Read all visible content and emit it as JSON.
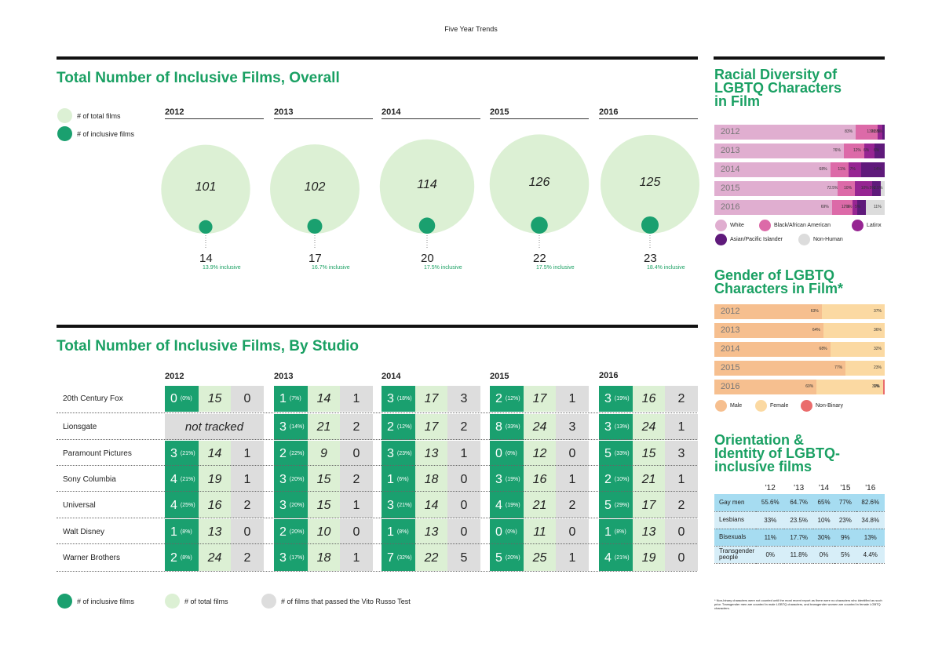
{
  "page_title": "Five Year Trends",
  "overall": {
    "title": "Total Number of Inclusive Films, Overall",
    "legend": {
      "total": "# of total films",
      "inclusive": "# of inclusive films"
    },
    "colors": {
      "total": "#dcf0d4",
      "inclusive": "#1aa06f"
    }
  },
  "studio_section": {
    "title": "Total Number of Inclusive Films, By Studio",
    "not_tracked": "not tracked",
    "studios": [
      "20th Century Fox",
      "Lionsgate",
      "Paramount Pictures",
      "Sony Columbia",
      "Universal",
      "Walt Disney",
      "Warner Brothers"
    ],
    "legend": {
      "inclusive": "# of inclusive films",
      "total": "# of total films",
      "vito": "# of films that passed the Vito Russo Test"
    }
  },
  "racial": {
    "title_lines": [
      "Racial Diversity of",
      "LGBTQ Characters",
      "in Film"
    ],
    "legend": [
      "White",
      "Black/African American",
      "Latinx",
      "Asian/Pacific Islander",
      "Non-Human"
    ]
  },
  "gender": {
    "title_lines": [
      "Gender of LGBTQ",
      "Characters in Film*"
    ],
    "legend": [
      "Male",
      "Female",
      "Non-Binary"
    ]
  },
  "orientation": {
    "title_lines": [
      "Orientation &",
      "Identity of LGBTQ-",
      "inclusive films"
    ],
    "headers": [
      "'12",
      "'13",
      "'14",
      "'15",
      "'16"
    ],
    "rows": [
      {
        "label": "Gay men",
        "values": [
          "55.6%",
          "64.7%",
          "65%",
          "77%",
          "82.6%"
        ]
      },
      {
        "label": "Lesbians",
        "values": [
          "33%",
          "23.5%",
          "10%",
          "23%",
          "34.8%"
        ]
      },
      {
        "label": "Bisexuals",
        "values": [
          "11%",
          "17.7%",
          "30%",
          "9%",
          "13%"
        ]
      },
      {
        "label": "Transgender people",
        "values": [
          "0%",
          "11.8%",
          "0%",
          "5%",
          "4.4%"
        ]
      }
    ]
  },
  "footnote": "* Non-binary characters were not counted until the most recent report as there were no characters who identified as such prior. Transgender men are counted in male LGBTQ characters, and transgender women are counted in female LGBTQ characters.",
  "chart_data": [
    {
      "type": "bubble",
      "title": "Total Number of Inclusive Films, Overall",
      "categories": [
        "2012",
        "2013",
        "2014",
        "2015",
        "2016"
      ],
      "series": [
        {
          "name": "# of total films",
          "values": [
            101,
            102,
            114,
            126,
            125
          ]
        },
        {
          "name": "# of inclusive films",
          "values": [
            14,
            17,
            20,
            22,
            23
          ]
        }
      ],
      "inclusive_pct_labels": [
        "13.9% inclusive",
        "16.7% inclusive",
        "17.5% inclusive",
        "17.5% inclusive",
        "18.4% inclusive"
      ]
    },
    {
      "type": "table",
      "title": "Total Number of Inclusive Films, By Studio",
      "categories": [
        "2012",
        "2013",
        "2014",
        "2015",
        "2016"
      ],
      "rows": [
        {
          "studio": "20th Century Fox",
          "cells": [
            {
              "inclusive": "0",
              "pct": "(0%)",
              "total": "15",
              "vito": "0"
            },
            {
              "inclusive": "1",
              "pct": "(7%)",
              "total": "14",
              "vito": "1"
            },
            {
              "inclusive": "3",
              "pct": "(18%)",
              "total": "17",
              "vito": "3"
            },
            {
              "inclusive": "2",
              "pct": "(12%)",
              "total": "17",
              "vito": "1"
            },
            {
              "inclusive": "3",
              "pct": "(19%)",
              "total": "16",
              "vito": "2"
            }
          ]
        },
        {
          "studio": "Lionsgate",
          "cells": [
            null,
            {
              "inclusive": "3",
              "pct": "(14%)",
              "total": "21",
              "vito": "2"
            },
            {
              "inclusive": "2",
              "pct": "(12%)",
              "total": "17",
              "vito": "2"
            },
            {
              "inclusive": "8",
              "pct": "(33%)",
              "total": "24",
              "vito": "3"
            },
            {
              "inclusive": "3",
              "pct": "(13%)",
              "total": "24",
              "vito": "1"
            }
          ]
        },
        {
          "studio": "Paramount Pictures",
          "cells": [
            {
              "inclusive": "3",
              "pct": "(21%)",
              "total": "14",
              "vito": "1"
            },
            {
              "inclusive": "2",
              "pct": "(22%)",
              "total": "9",
              "vito": "0"
            },
            {
              "inclusive": "3",
              "pct": "(23%)",
              "total": "13",
              "vito": "1"
            },
            {
              "inclusive": "0",
              "pct": "(0%)",
              "total": "12",
              "vito": "0"
            },
            {
              "inclusive": "5",
              "pct": "(33%)",
              "total": "15",
              "vito": "3"
            }
          ]
        },
        {
          "studio": "Sony Columbia",
          "cells": [
            {
              "inclusive": "4",
              "pct": "(21%)",
              "total": "19",
              "vito": "1"
            },
            {
              "inclusive": "3",
              "pct": "(20%)",
              "total": "15",
              "vito": "2"
            },
            {
              "inclusive": "1",
              "pct": "(6%)",
              "total": "18",
              "vito": "0"
            },
            {
              "inclusive": "3",
              "pct": "(19%)",
              "total": "16",
              "vito": "1"
            },
            {
              "inclusive": "2",
              "pct": "(10%)",
              "total": "21",
              "vito": "1"
            }
          ]
        },
        {
          "studio": "Universal",
          "cells": [
            {
              "inclusive": "4",
              "pct": "(25%)",
              "total": "16",
              "vito": "2"
            },
            {
              "inclusive": "3",
              "pct": "(20%)",
              "total": "15",
              "vito": "1"
            },
            {
              "inclusive": "3",
              "pct": "(21%)",
              "total": "14",
              "vito": "0"
            },
            {
              "inclusive": "4",
              "pct": "(19%)",
              "total": "21",
              "vito": "2"
            },
            {
              "inclusive": "5",
              "pct": "(29%)",
              "total": "17",
              "vito": "2"
            }
          ]
        },
        {
          "studio": "Walt Disney",
          "cells": [
            {
              "inclusive": "1",
              "pct": "(8%)",
              "total": "13",
              "vito": "0"
            },
            {
              "inclusive": "2",
              "pct": "(20%)",
              "total": "10",
              "vito": "0"
            },
            {
              "inclusive": "1",
              "pct": "(8%)",
              "total": "13",
              "vito": "0"
            },
            {
              "inclusive": "0",
              "pct": "(0%)",
              "total": "11",
              "vito": "0"
            },
            {
              "inclusive": "1",
              "pct": "(8%)",
              "total": "13",
              "vito": "0"
            }
          ]
        },
        {
          "studio": "Warner Brothers",
          "cells": [
            {
              "inclusive": "2",
              "pct": "(8%)",
              "total": "24",
              "vito": "2"
            },
            {
              "inclusive": "3",
              "pct": "(17%)",
              "total": "18",
              "vito": "1"
            },
            {
              "inclusive": "7",
              "pct": "(32%)",
              "total": "22",
              "vito": "5"
            },
            {
              "inclusive": "5",
              "pct": "(20%)",
              "total": "25",
              "vito": "1"
            },
            {
              "inclusive": "4",
              "pct": "(21%)",
              "total": "19",
              "vito": "0"
            }
          ]
        }
      ]
    },
    {
      "type": "bar",
      "stacked": true,
      "title": "Racial Diversity of LGBTQ Characters in Film",
      "categories": [
        "2012",
        "2013",
        "2014",
        "2015",
        "2016"
      ],
      "series": [
        {
          "name": "White",
          "color": "#e0aed0",
          "values": [
            83,
            76,
            68,
            72.5,
            69
          ],
          "labels": [
            "83%",
            "76%",
            "68%",
            "72.5%",
            "69%"
          ]
        },
        {
          "name": "Black/African American",
          "color": "#dc6aa8",
          "values": [
            13,
            12,
            11,
            10,
            12
          ],
          "labels": [
            "13%",
            "12%",
            "11%",
            "10%",
            "12%"
          ]
        },
        {
          "name": "Latinx",
          "color": "#962592",
          "values": [
            2.5,
            6,
            7,
            10,
            3
          ],
          "labels": [
            "2.5%",
            "6%",
            "7%",
            "10%",
            "3%"
          ]
        },
        {
          "name": "Asian/Pacific Islander",
          "color": "#5f1a7b",
          "values": [
            1.5,
            6,
            14,
            5,
            5
          ],
          "labels": [
            "1.5%",
            "6%",
            "14%",
            "5%",
            "5%"
          ]
        },
        {
          "name": "Non-Human",
          "color": "#dcdcdc",
          "values": [
            0,
            0,
            0,
            2.5,
            11
          ],
          "labels": [
            "",
            "",
            "",
            "2.5%",
            "11%"
          ]
        }
      ]
    },
    {
      "type": "bar",
      "stacked": true,
      "title": "Gender of LGBTQ Characters in Film*",
      "categories": [
        "2012",
        "2013",
        "2014",
        "2015",
        "2016"
      ],
      "series": [
        {
          "name": "Male",
          "color": "#f6bf8f",
          "values": [
            63,
            64,
            68,
            77,
            60
          ],
          "labels": [
            "63%",
            "64%",
            "68%",
            "77%",
            "60%"
          ]
        },
        {
          "name": "Female",
          "color": "#fbd9a2",
          "values": [
            37,
            36,
            32,
            23,
            39
          ],
          "labels": [
            "37%",
            "36%",
            "32%",
            "23%",
            "39%"
          ]
        },
        {
          "name": "Non-Binary",
          "color": "#ea6c6c",
          "values": [
            0,
            0,
            0,
            0,
            1
          ],
          "labels": [
            "",
            "",
            "",
            "",
            "1%"
          ]
        }
      ]
    },
    {
      "type": "table",
      "title": "Orientation & Identity of LGBTQ-inclusive films"
    }
  ]
}
